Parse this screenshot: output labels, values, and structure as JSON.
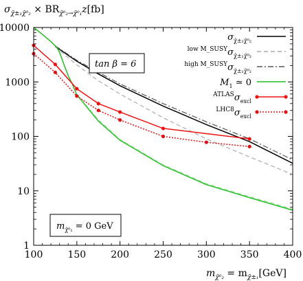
{
  "chart_data": {
    "type": "line",
    "title": "",
    "ylabel_parts": {
      "sigma": "σ",
      "sigma_sub": "χ̃±₁χ̃⁰₂",
      "times": " × BR",
      "br_sub": "χ̃⁰₂→χ̃⁰₁",
      "z": "z",
      "unit": "[fb]"
    },
    "xlabel_parts": {
      "m1": "m",
      "m1_sub": "χ̃⁰₂",
      "eq": " = m",
      "m2_sub": "χ̃±₁",
      "unit": "[GeV]"
    },
    "xlim": [
      100,
      400
    ],
    "ylim": [
      1,
      10000
    ],
    "yscale": "log",
    "x_ticks": [
      "100",
      "150",
      "200",
      "250",
      "300",
      "350",
      "400"
    ],
    "y_ticks": [
      "1",
      "10",
      "100",
      "1000",
      "10000"
    ],
    "annotations": {
      "tanb": "tan β = 6",
      "m_lsp_main": "m",
      "m_lsp_sub": "χ̃⁰₁",
      "m_lsp_val": " = 0 GeV"
    },
    "legend": {
      "position": "top-right",
      "entries": [
        {
          "main": "σ",
          "sup": "",
          "sub": "χ̃±₁χ̃⁰₂",
          "color": "#000000",
          "style": "solid",
          "marker": false
        },
        {
          "main": "σ",
          "sup": "low M_SUSY",
          "sub": "χ̃±₁χ̃⁰₂",
          "color": "#aaaaaa",
          "style": "dashed",
          "marker": false
        },
        {
          "main": "σ",
          "sup": "high M_SUSY",
          "sub": "χ̃±₁χ̃⁰₂",
          "color": "#555555",
          "style": "dashdot",
          "marker": false
        },
        {
          "main": "M",
          "sup": "",
          "sub": "1",
          "tail": " ≃ 0",
          "color": "#22bb22",
          "style": "solid",
          "marker": false
        },
        {
          "main": "σ",
          "sup": "ATLAS",
          "sub": "excl",
          "color": "#ee1111",
          "style": "solid",
          "marker": true
        },
        {
          "main": "σ",
          "sup": "LHC8",
          "sub": "excl",
          "color": "#dd1111",
          "style": "dotted",
          "marker": true
        }
      ]
    },
    "series": [
      {
        "key": "sigma",
        "color": "#000000",
        "style": "solid",
        "width": 1.5,
        "x": [
          125,
          150,
          175,
          200,
          250,
          300,
          350,
          400
        ],
        "y": [
          4500,
          2400,
          1400,
          850,
          360,
          165,
          80,
          32
        ]
      },
      {
        "key": "sigma_low",
        "color": "#aaaaaa",
        "style": "dashed",
        "width": 1.2,
        "x": [
          125,
          150,
          175,
          200,
          250,
          300,
          350,
          400
        ],
        "y": [
          4400,
          2050,
          1050,
          600,
          220,
          90,
          42,
          20
        ]
      },
      {
        "key": "sigma_high",
        "color": "#555555",
        "style": "dashdot",
        "width": 1.2,
        "x": [
          125,
          150,
          175,
          200,
          250,
          300,
          350,
          400
        ],
        "y": [
          4600,
          2500,
          1500,
          920,
          400,
          185,
          90,
          37
        ]
      },
      {
        "key": "m1_zero",
        "color": "#22bb22",
        "style": "solid",
        "width": 1.5,
        "x": [
          100,
          110,
          120,
          127,
          130,
          135,
          140,
          145,
          150,
          175,
          200,
          250,
          300,
          350,
          400
        ],
        "y": [
          10000,
          7500,
          5500,
          4300,
          3500,
          2100,
          1300,
          900,
          580,
          190,
          85,
          29,
          13,
          7.5,
          4.4
        ]
      },
      {
        "key": "m1_zero_dash",
        "color": "#88dd88",
        "style": "dashed",
        "width": 1.2,
        "x": [
          150,
          175,
          200,
          250,
          300,
          350,
          400
        ],
        "y": [
          600,
          200,
          88,
          30,
          13.5,
          7.8,
          4.6
        ]
      },
      {
        "key": "atlas",
        "color": "#ee1111",
        "style": "solid",
        "width": 1.5,
        "marker": true,
        "x": [
          100,
          125,
          150,
          175,
          200,
          250,
          350
        ],
        "y": [
          4700,
          2100,
          750,
          400,
          280,
          140,
          90
        ]
      },
      {
        "key": "lhc8",
        "color": "#dd1111",
        "style": "dotted",
        "width": 1.5,
        "marker": true,
        "x": [
          100,
          125,
          150,
          175,
          200,
          250,
          300,
          350
        ],
        "y": [
          3300,
          1500,
          550,
          300,
          200,
          100,
          78,
          65
        ]
      }
    ]
  }
}
